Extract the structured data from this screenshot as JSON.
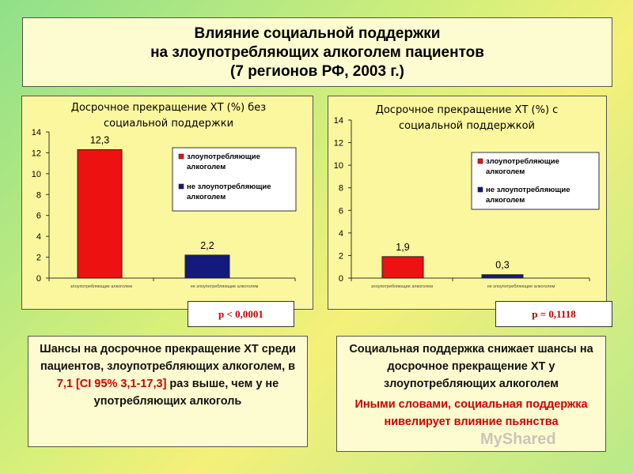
{
  "slide": {
    "title_lines": [
      "Влияние социальной поддержки",
      "на злоупотребляющих алкоголем пациентов",
      "(7 регионов РФ, 2003 г.)"
    ]
  },
  "chart_data": [
    {
      "type": "bar",
      "title_lines": [
        "Досрочное прекращение ХТ (%) без",
        "социальной поддержки"
      ],
      "categories": [
        "злоупотребляющие алкоголем",
        "не злоупотребляющие алкоголем"
      ],
      "category_labels": [
        "злоупотребляющие алкоголем",
        "не злоупотребляющие алкоголем"
      ],
      "series": [
        {
          "name": "злоупотребляющие алкоголем",
          "color": "#ee1111",
          "values": [
            12.3,
            null
          ]
        },
        {
          "name": "не злоупотребляющие алкоголем",
          "color": "#141a7a",
          "values": [
            null,
            2.2
          ]
        }
      ],
      "data_labels": [
        "12,3",
        "2,2"
      ],
      "ylim": [
        0,
        14
      ],
      "yticks": [
        "0",
        "2",
        "4",
        "6",
        "8",
        "10",
        "12",
        "14"
      ],
      "legend": [
        "злоупотребляющие",
        "алкоголем",
        "не злоупотребляющие",
        "алкоголем"
      ],
      "legend_placement": "right",
      "grid": false
    },
    {
      "type": "bar",
      "title_lines": [
        "Досрочное прекращение ХТ (%) с",
        "социальной поддержкой"
      ],
      "categories": [
        "злоупотребляющие алкоголем",
        "не злоупотребляющие алкоголем"
      ],
      "category_labels": [
        "злоупотребляющие алкоголем",
        "не злоупотребляющие алкоголем"
      ],
      "series": [
        {
          "name": "злоупотребляющие алкоголем",
          "color": "#ee1111",
          "values": [
            1.9,
            null
          ]
        },
        {
          "name": "не злоупотребляющие алкоголем",
          "color": "#141a7a",
          "values": [
            null,
            0.3
          ]
        }
      ],
      "data_labels": [
        "1,9",
        "0,3"
      ],
      "ylim": [
        0,
        14
      ],
      "yticks": [
        "0",
        "2",
        "4",
        "6",
        "8",
        "10",
        "12",
        "14"
      ],
      "legend": [
        "злоупотребляющие",
        "алкоголем",
        "не злоупотребляющие",
        "алкоголем"
      ],
      "legend_placement": "right",
      "grid": false
    }
  ],
  "p_values": {
    "left": "p < 0,0001",
    "right": "p = 0,1118"
  },
  "odds_text": {
    "part1": "Шансы на досрочное прекращение ХТ среди пациентов, злоупотребляющих алкоголем, в ",
    "value": "7,1 [CI 95% 3,1-17,3]",
    "part2": " раз выше, чем у не употребляющих алкоголь"
  },
  "support_text": {
    "main": "Социальная поддержка снижает шансы на досрочное прекращение ХТ у злоупотребляющих алкоголем",
    "highlight": "Иными словами, социальная поддержка нивелирует влияние пьянства"
  },
  "watermark": "MyShared"
}
